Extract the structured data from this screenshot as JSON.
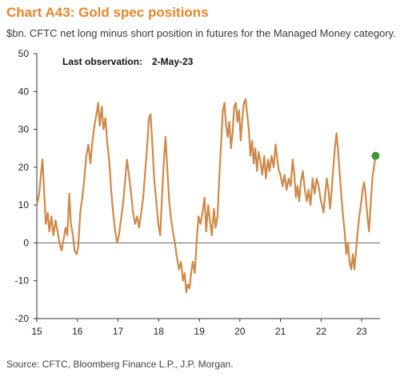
{
  "chart_data": {
    "type": "line",
    "title": "Chart A43: Gold spec positions",
    "subtitle": "$bn. CFTC net long minus short position in futures for the Managed Money category.",
    "annotation": {
      "label": "Last observation:",
      "value": "2-May-23"
    },
    "source": "Source: CFTC, Bloomberg Finance L.P., J.P. Morgan.",
    "xlabel": "",
    "ylabel": "",
    "xlim": [
      15,
      23.45
    ],
    "ylim": [
      -20,
      50
    ],
    "yticks": [
      -20,
      -10,
      0,
      10,
      20,
      30,
      40,
      50
    ],
    "xticks": [
      15,
      16,
      17,
      18,
      19,
      20,
      21,
      22,
      23
    ],
    "xtick_labels": [
      "15",
      "16",
      "17",
      "18",
      "19",
      "20",
      "21",
      "22",
      "23"
    ],
    "grid": false,
    "line_color": "#cd8a4a",
    "marker_color": "#3a9a3a",
    "last_point": {
      "x": 23.34,
      "y": 23
    },
    "series": [
      {
        "values": [
          [
            15.0,
            10
          ],
          [
            15.06,
            13
          ],
          [
            15.1,
            18
          ],
          [
            15.14,
            22
          ],
          [
            15.18,
            14
          ],
          [
            15.22,
            5
          ],
          [
            15.27,
            8
          ],
          [
            15.31,
            3
          ],
          [
            15.36,
            7
          ],
          [
            15.41,
            2
          ],
          [
            15.46,
            6
          ],
          [
            15.51,
            3
          ],
          [
            15.56,
            0
          ],
          [
            15.61,
            -2
          ],
          [
            15.66,
            1
          ],
          [
            15.71,
            4
          ],
          [
            15.75,
            2
          ],
          [
            15.8,
            13
          ],
          [
            15.84,
            5
          ],
          [
            15.89,
            2
          ],
          [
            15.93,
            -2
          ],
          [
            15.98,
            -3
          ],
          [
            16.02,
            -1
          ],
          [
            16.07,
            8
          ],
          [
            16.12,
            12
          ],
          [
            16.17,
            17
          ],
          [
            16.22,
            23
          ],
          [
            16.27,
            26
          ],
          [
            16.32,
            21
          ],
          [
            16.37,
            27
          ],
          [
            16.42,
            31
          ],
          [
            16.47,
            34
          ],
          [
            16.51,
            37
          ],
          [
            16.55,
            31
          ],
          [
            16.6,
            36
          ],
          [
            16.64,
            30
          ],
          [
            16.69,
            33
          ],
          [
            16.73,
            27
          ],
          [
            16.78,
            22
          ],
          [
            16.83,
            14
          ],
          [
            16.88,
            8
          ],
          [
            16.93,
            3
          ],
          [
            16.98,
            0
          ],
          [
            17.02,
            2
          ],
          [
            17.07,
            6
          ],
          [
            17.12,
            10
          ],
          [
            17.17,
            16
          ],
          [
            17.22,
            22
          ],
          [
            17.27,
            18
          ],
          [
            17.32,
            13
          ],
          [
            17.37,
            8
          ],
          [
            17.42,
            5
          ],
          [
            17.47,
            7
          ],
          [
            17.52,
            4
          ],
          [
            17.57,
            8
          ],
          [
            17.62,
            12
          ],
          [
            17.67,
            19
          ],
          [
            17.72,
            26
          ],
          [
            17.76,
            33
          ],
          [
            17.8,
            34
          ],
          [
            17.85,
            25
          ],
          [
            17.89,
            17
          ],
          [
            17.94,
            11
          ],
          [
            17.99,
            5
          ],
          [
            18.04,
            2
          ],
          [
            18.09,
            14
          ],
          [
            18.13,
            22
          ],
          [
            18.17,
            28
          ],
          [
            18.21,
            20
          ],
          [
            18.26,
            11
          ],
          [
            18.31,
            6
          ],
          [
            18.35,
            3
          ],
          [
            18.4,
            0
          ],
          [
            18.45,
            -4
          ],
          [
            18.5,
            -7
          ],
          [
            18.55,
            -5
          ],
          [
            18.6,
            -10
          ],
          [
            18.64,
            -8
          ],
          [
            18.68,
            -13
          ],
          [
            18.72,
            -11
          ],
          [
            18.76,
            -12
          ],
          [
            18.8,
            -8
          ],
          [
            18.84,
            -5
          ],
          [
            18.89,
            -8
          ],
          [
            18.94,
            1
          ],
          [
            18.98,
            7
          ],
          [
            19.03,
            5
          ],
          [
            19.08,
            8
          ],
          [
            19.13,
            12
          ],
          [
            19.17,
            3
          ],
          [
            19.22,
            10
          ],
          [
            19.26,
            6
          ],
          [
            19.31,
            2
          ],
          [
            19.36,
            9
          ],
          [
            19.4,
            4
          ],
          [
            19.45,
            7
          ],
          [
            19.5,
            19
          ],
          [
            19.54,
            27
          ],
          [
            19.58,
            35
          ],
          [
            19.62,
            37
          ],
          [
            19.66,
            31
          ],
          [
            19.7,
            28
          ],
          [
            19.74,
            32
          ],
          [
            19.78,
            25
          ],
          [
            19.82,
            29
          ],
          [
            19.86,
            36
          ],
          [
            19.9,
            37
          ],
          [
            19.94,
            32
          ],
          [
            19.98,
            35
          ],
          [
            20.02,
            27
          ],
          [
            20.06,
            33
          ],
          [
            20.1,
            37
          ],
          [
            20.14,
            38
          ],
          [
            20.18,
            34
          ],
          [
            20.22,
            30
          ],
          [
            20.26,
            23
          ],
          [
            20.3,
            27
          ],
          [
            20.34,
            21
          ],
          [
            20.38,
            25
          ],
          [
            20.42,
            19
          ],
          [
            20.46,
            24
          ],
          [
            20.5,
            22
          ],
          [
            20.55,
            18
          ],
          [
            20.6,
            23
          ],
          [
            20.64,
            17
          ],
          [
            20.69,
            22
          ],
          [
            20.73,
            19
          ],
          [
            20.78,
            23
          ],
          [
            20.83,
            20
          ],
          [
            20.88,
            26
          ],
          [
            20.92,
            22
          ],
          [
            20.96,
            19
          ],
          [
            21.0,
            18
          ],
          [
            21.05,
            15
          ],
          [
            21.1,
            18
          ],
          [
            21.15,
            14
          ],
          [
            21.2,
            17
          ],
          [
            21.25,
            15
          ],
          [
            21.3,
            22
          ],
          [
            21.34,
            18
          ],
          [
            21.38,
            12
          ],
          [
            21.42,
            15
          ],
          [
            21.46,
            11
          ],
          [
            21.5,
            16
          ],
          [
            21.55,
            19
          ],
          [
            21.6,
            14
          ],
          [
            21.65,
            11
          ],
          [
            21.69,
            14
          ],
          [
            21.74,
            10
          ],
          [
            21.79,
            17
          ],
          [
            21.84,
            13
          ],
          [
            21.89,
            17
          ],
          [
            21.94,
            15
          ],
          [
            21.98,
            12
          ],
          [
            22.02,
            10
          ],
          [
            22.06,
            8
          ],
          [
            22.1,
            13
          ],
          [
            22.14,
            17
          ],
          [
            22.18,
            14
          ],
          [
            22.22,
            9
          ],
          [
            22.26,
            14
          ],
          [
            22.3,
            20
          ],
          [
            22.34,
            25
          ],
          [
            22.38,
            29
          ],
          [
            22.42,
            24
          ],
          [
            22.46,
            18
          ],
          [
            22.5,
            12
          ],
          [
            22.54,
            7
          ],
          [
            22.58,
            3
          ],
          [
            22.62,
            -3
          ],
          [
            22.66,
            0
          ],
          [
            22.7,
            -5
          ],
          [
            22.74,
            -7
          ],
          [
            22.78,
            -3
          ],
          [
            22.82,
            -7
          ],
          [
            22.86,
            -2
          ],
          [
            22.9,
            3
          ],
          [
            22.94,
            7
          ],
          [
            22.98,
            10
          ],
          [
            23.02,
            14
          ],
          [
            23.06,
            16
          ],
          [
            23.1,
            12
          ],
          [
            23.14,
            7
          ],
          [
            23.18,
            3
          ],
          [
            23.22,
            10
          ],
          [
            23.26,
            17
          ],
          [
            23.3,
            20
          ],
          [
            23.34,
            23
          ]
        ]
      }
    ]
  }
}
